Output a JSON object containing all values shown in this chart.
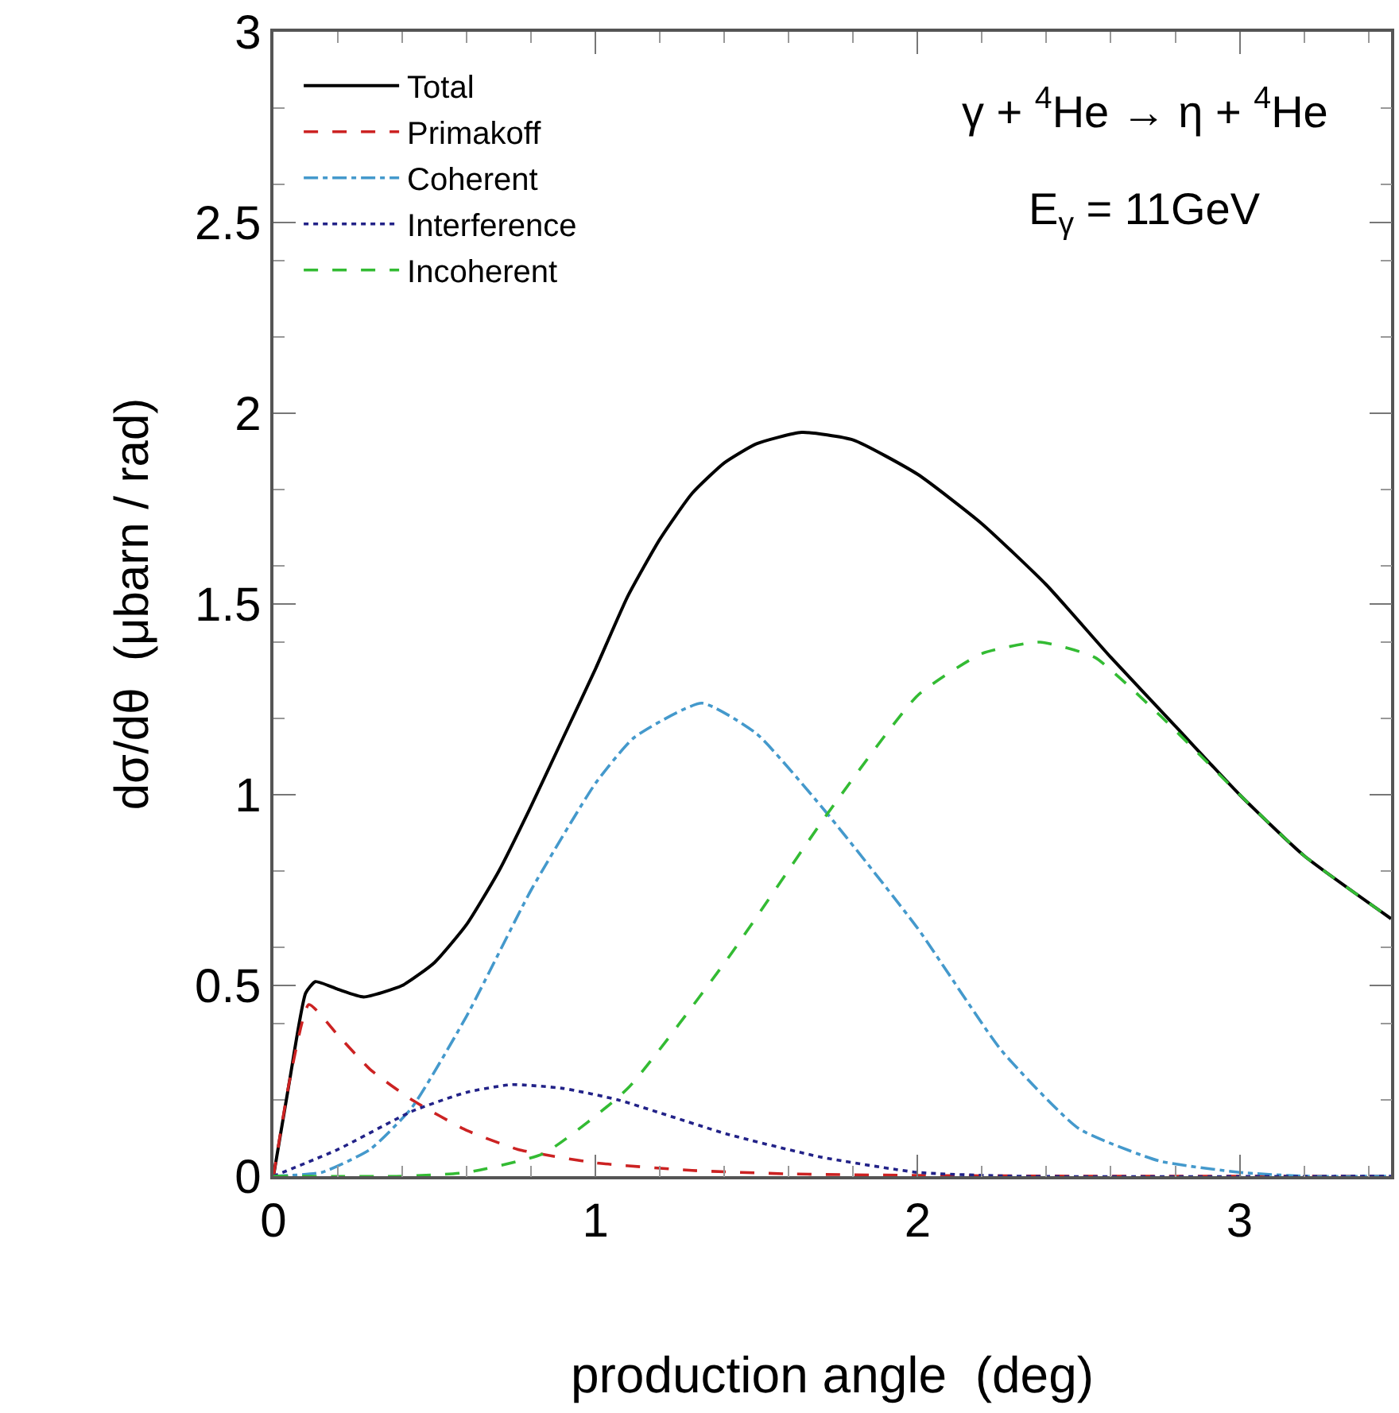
{
  "chart_data": {
    "type": "line",
    "xlabel": "production angle  (deg)",
    "ylabel": "dσ/dθ  (μbarn / rad)",
    "annotations": [
      "γ + $^{4}$He → η + $^{4}$He",
      "E$_{γ}$ = 11GeV"
    ],
    "xlim": [
      0,
      3.47
    ],
    "ylim": [
      0,
      3
    ],
    "xticks": [
      0,
      1,
      2,
      3
    ],
    "yticks": [
      0,
      0.5,
      1,
      1.5,
      2,
      2.5,
      3
    ],
    "legend": "top left",
    "marker": "none",
    "series": [
      {
        "name": "Total",
        "color": "#000000",
        "line_style": "solid",
        "x": [
          0,
          0.05,
          0.1,
          0.13,
          0.2,
          0.28,
          0.4,
          0.5,
          0.6,
          0.7,
          0.8,
          0.9,
          1.0,
          1.1,
          1.2,
          1.3,
          1.4,
          1.5,
          1.64,
          1.8,
          2.0,
          2.2,
          2.4,
          2.6,
          2.8,
          3.0,
          3.2,
          3.47
        ],
        "values": [
          0,
          0.25,
          0.48,
          0.51,
          0.49,
          0.47,
          0.5,
          0.56,
          0.66,
          0.8,
          0.97,
          1.15,
          1.33,
          1.52,
          1.67,
          1.79,
          1.87,
          1.92,
          1.95,
          1.93,
          1.84,
          1.71,
          1.55,
          1.36,
          1.18,
          1.0,
          0.84,
          0.675
        ]
      },
      {
        "name": "Primakoff",
        "color": "#cc2222",
        "line_style": "dashed",
        "x": [
          0,
          0.05,
          0.11,
          0.2,
          0.3,
          0.43,
          0.6,
          0.76,
          1.0,
          1.3,
          1.6,
          2.0,
          2.5,
          3.47
        ],
        "values": [
          0,
          0.25,
          0.45,
          0.37,
          0.28,
          0.2,
          0.12,
          0.07,
          0.035,
          0.015,
          0.006,
          0.002,
          0,
          0
        ]
      },
      {
        "name": "Coherent",
        "color": "#4499cc",
        "line_style": "dashdot",
        "x": [
          0,
          0.15,
          0.3,
          0.43,
          0.6,
          0.8,
          1.0,
          1.12,
          1.33,
          1.5,
          1.72,
          2.0,
          2.26,
          2.5,
          2.75,
          3.0,
          3.2,
          3.47
        ],
        "values": [
          0,
          0.01,
          0.07,
          0.18,
          0.42,
          0.75,
          1.03,
          1.15,
          1.24,
          1.16,
          0.95,
          0.65,
          0.33,
          0.125,
          0.04,
          0.01,
          0,
          0
        ]
      },
      {
        "name": "Interference",
        "color": "#222288",
        "line_style": "dotted",
        "x": [
          0,
          0.2,
          0.43,
          0.6,
          0.74,
          0.9,
          1.07,
          1.41,
          1.7,
          2.0,
          2.3,
          3.47
        ],
        "values": [
          0,
          0.07,
          0.17,
          0.22,
          0.24,
          0.23,
          0.2,
          0.11,
          0.05,
          0.01,
          0,
          0
        ]
      },
      {
        "name": "Incoherent",
        "color": "#33bb33",
        "line_style": "dashed",
        "x": [
          0,
          0.4,
          0.6,
          0.84,
          1.1,
          1.41,
          1.72,
          2.0,
          2.2,
          2.38,
          2.55,
          2.75,
          3.0,
          3.2,
          3.47
        ],
        "values": [
          0,
          0,
          0.01,
          0.06,
          0.23,
          0.57,
          0.95,
          1.26,
          1.37,
          1.4,
          1.36,
          1.21,
          1.0,
          0.84,
          0.675
        ]
      }
    ]
  }
}
